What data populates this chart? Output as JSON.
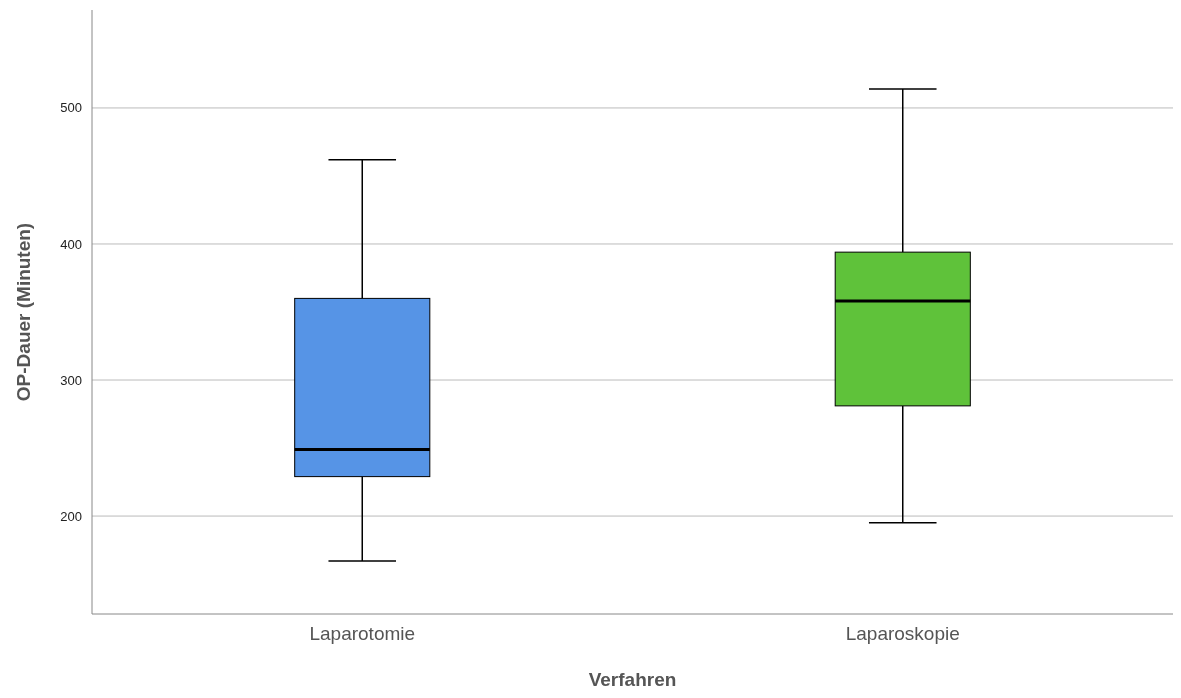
{
  "chart_data": {
    "type": "box",
    "xlabel": "Verfahren",
    "ylabel": "OP-Dauer (Minuten)",
    "categories": [
      "Laparotomie",
      "Laparoskopie"
    ],
    "colors": [
      "#5694e6",
      "#5fc23a"
    ],
    "boxes": [
      {
        "low": 167,
        "q1": 229,
        "median": 249,
        "q3": 360,
        "high": 462
      },
      {
        "low": 195,
        "q1": 281,
        "median": 358,
        "q3": 394,
        "high": 514
      }
    ],
    "ylim": [
      128,
      572
    ],
    "yticks": [
      200,
      300,
      400,
      500
    ],
    "grid": "y"
  }
}
